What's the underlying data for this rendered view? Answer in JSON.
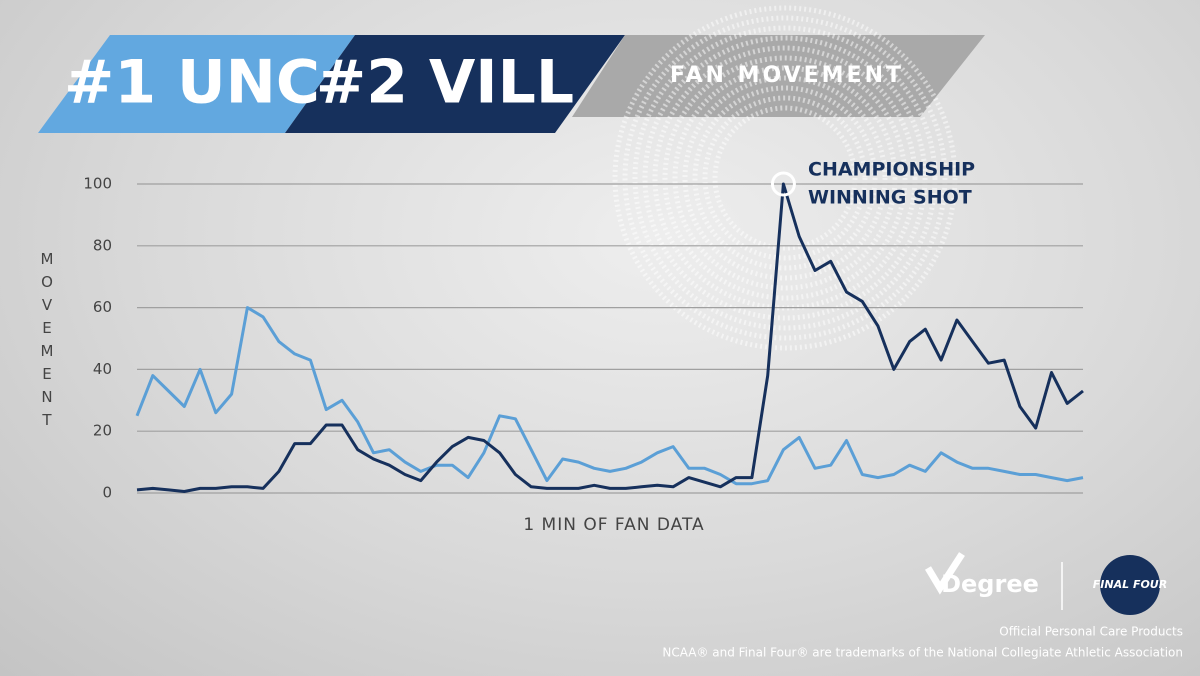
{
  "header": {
    "team1": "#1 UNC",
    "team2": "#2 VILL",
    "subtitle": "FAN MOVEMENT"
  },
  "chart_data": {
    "type": "line",
    "y_label": "MOVEMENT",
    "x_label": "1 MIN OF FAN DATA",
    "annotation": [
      "CHAMPIONSHIP",
      "WINNING SHOT"
    ],
    "categories": [
      null,
      null,
      null,
      null,
      null,
      null,
      null,
      null,
      null,
      null,
      null,
      null,
      null,
      null,
      null,
      null,
      null,
      null,
      null,
      null,
      null,
      null,
      null,
      null,
      null,
      null,
      null,
      null,
      null,
      null,
      null,
      null,
      null,
      null,
      null,
      null,
      null,
      null,
      null,
      null,
      null,
      null,
      null,
      null,
      null,
      null,
      null,
      null,
      null,
      null,
      null,
      null,
      null,
      null,
      null,
      null,
      null,
      null,
      null,
      null,
      null
    ],
    "series": [
      {
        "color": "#5b9fd6",
        "values": [
          25,
          38,
          33,
          28,
          40,
          26,
          32,
          60,
          57,
          49,
          45,
          43,
          27,
          30,
          23,
          13,
          14,
          10,
          7,
          9,
          9,
          5,
          13,
          25,
          24,
          14,
          4,
          11,
          10,
          8,
          7,
          8,
          10,
          13,
          15,
          8,
          8,
          6,
          3,
          3,
          4,
          14,
          18,
          8,
          9,
          17,
          6,
          5,
          6,
          9,
          7,
          13,
          10,
          8,
          8,
          7,
          6,
          6,
          5,
          4,
          5
        ]
      },
      {
        "color": "#16305c",
        "values": [
          1,
          1.5,
          1,
          0.5,
          1.5,
          1.5,
          2,
          2,
          1.5,
          7,
          16,
          16,
          22,
          22,
          14,
          11,
          9,
          6,
          4,
          10,
          15,
          18,
          17,
          13,
          6,
          2,
          1.5,
          1.5,
          1.5,
          2.5,
          1.5,
          1.5,
          2,
          2.5,
          2,
          5,
          3.5,
          2,
          5,
          5,
          38,
          100,
          83,
          72,
          75,
          65,
          62,
          54,
          40,
          49,
          53,
          43,
          56,
          49,
          42,
          43,
          28,
          21,
          39,
          29,
          33
        ]
      }
    ],
    "ylim": [
      0,
      100
    ],
    "yticks": [
      0,
      20,
      40,
      60,
      80,
      100
    ],
    "grid": true,
    "peak": {
      "series": 1,
      "index": 41
    }
  },
  "footer": {
    "brand": "Degree",
    "event": "FINAL FOUR",
    "line1": "Official Personal Care Products",
    "line2": "NCAA® and Final Four® are trademarks of the National Collegiate Athletic Association"
  }
}
